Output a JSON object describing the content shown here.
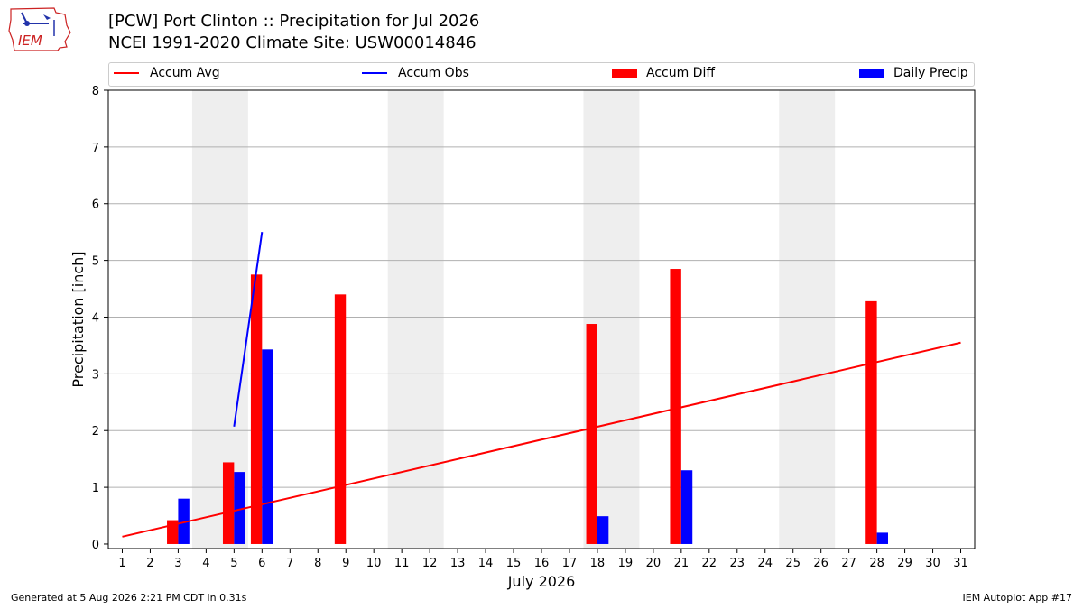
{
  "logo": {
    "text": "IEM"
  },
  "header": {
    "title": "[PCW] Port Clinton :: Precipitation for Jul 2026",
    "subtitle": "NCEI 1991-2020 Climate Site: USW00014846"
  },
  "legend": {
    "accum_avg": "Accum Avg",
    "accum_obs": "Accum Obs",
    "accum_diff": "Accum Diff",
    "daily_precip": "Daily Precip"
  },
  "footer": {
    "generated": "Generated at 5 Aug 2026 2:21 PM CDT in 0.31s",
    "app": "IEM Autoplot App #17"
  },
  "colors": {
    "accum_avg": "#ff0000",
    "accum_obs": "#0000ff",
    "accum_diff": "#ff0000",
    "daily_precip": "#0000ff",
    "weekend_shade": "#eeeeee",
    "grid": "#b0b0b0"
  },
  "chart_data": {
    "type": "bar",
    "xlabel": "July 2026",
    "ylabel": "Precipitation [inch]",
    "xlim": [
      0.5,
      31.5
    ],
    "ylim": [
      -0.08,
      8
    ],
    "x_ticks": [
      1,
      2,
      3,
      4,
      5,
      6,
      7,
      8,
      9,
      10,
      11,
      12,
      13,
      14,
      15,
      16,
      17,
      18,
      19,
      20,
      21,
      22,
      23,
      24,
      25,
      26,
      27,
      28,
      29,
      30,
      31
    ],
    "y_ticks": [
      0,
      1,
      2,
      3,
      4,
      5,
      6,
      7,
      8
    ],
    "grid": "horizontal",
    "legend_position": "top",
    "weekend_spans": [
      [
        3.5,
        5.5
      ],
      [
        10.5,
        12.5
      ],
      [
        17.5,
        19.5
      ],
      [
        24.5,
        26.5
      ]
    ],
    "accum_avg": {
      "name": "Accum Avg",
      "x": [
        1,
        31
      ],
      "values": [
        0.13,
        3.55
      ]
    },
    "accum_obs": {
      "name": "Accum Obs",
      "x": [
        5,
        6
      ],
      "values": [
        2.07,
        5.5
      ]
    },
    "accum_diff": {
      "name": "Accum Diff",
      "days": [
        3,
        5,
        6,
        9,
        18,
        21,
        28
      ],
      "values": [
        0.42,
        1.44,
        4.75,
        4.4,
        3.88,
        4.85,
        4.28
      ]
    },
    "daily_precip": {
      "name": "Daily Precip",
      "days": [
        3,
        5,
        6,
        18,
        21,
        28
      ],
      "values": [
        0.8,
        1.27,
        3.43,
        0.49,
        1.3,
        0.2
      ]
    }
  }
}
